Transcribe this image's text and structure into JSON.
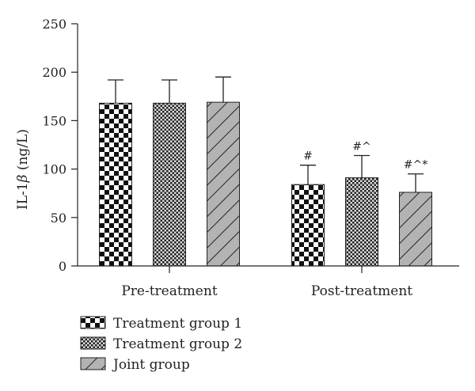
{
  "chart_data": {
    "type": "bar",
    "categories": [
      "Pre-treatment",
      "Post-treatment"
    ],
    "ylabel_prefix": "IL-1",
    "ylabel_symbol": "β",
    "ylabel_suffix": " (ng/L)",
    "ylim": [
      0,
      250
    ],
    "yticks": [
      "0",
      "50",
      "100",
      "150",
      "200",
      "250"
    ],
    "grid": false,
    "legend_position": "bottom-left",
    "series": [
      {
        "name": "Treatment group 1",
        "pattern": "checker",
        "values": [
          168,
          84
        ],
        "errors": [
          24,
          20
        ],
        "annotations": [
          "",
          "#"
        ]
      },
      {
        "name": "Treatment group 2",
        "pattern": "fine-checker",
        "values": [
          168,
          91
        ],
        "errors": [
          24,
          23
        ],
        "annotations": [
          "",
          "#^"
        ]
      },
      {
        "name": "Joint group",
        "pattern": "diagonal",
        "values": [
          169,
          76
        ],
        "errors": [
          26,
          19
        ],
        "annotations": [
          "",
          "#^*"
        ]
      }
    ]
  }
}
